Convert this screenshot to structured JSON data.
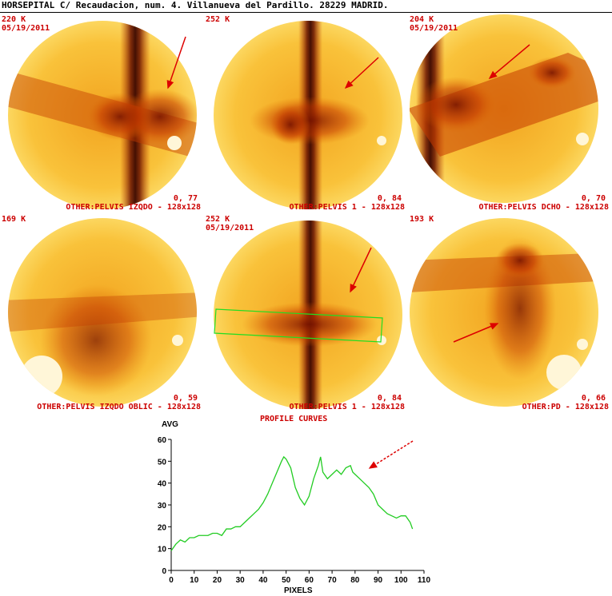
{
  "header": {
    "text": "HORSEPITAL C/ Recaudacion, num. 4. Villanueva del Pardillo. 28229 MADRID."
  },
  "panels": [
    {
      "count": "220 K",
      "date": "05/19/2011",
      "value": "0, 77",
      "view": "OTHER:PELVIS IZQDO - 128x128"
    },
    {
      "count": "252 K",
      "date": "",
      "value": "0, 84",
      "view": "OTHER:PELVIS 1 - 128x128"
    },
    {
      "count": "204 K",
      "date": "05/19/2011",
      "value": "0, 70",
      "view": "OTHER:PELVIS DCHO - 128x128"
    },
    {
      "count": "169 K",
      "date": "",
      "value": "0, 59",
      "view": "OTHER:PELVIS IZQDO OBLIC - 128x128"
    },
    {
      "count": "252 K",
      "date": "05/19/2011",
      "value": "0, 84",
      "view": "OTHER:PELVIS 1 - 128x128"
    },
    {
      "count": "193 K",
      "date": "",
      "value": "0, 66",
      "view": "OTHER:PD - 128x128"
    }
  ],
  "profile_caption": "PROFILE CURVES",
  "colors": {
    "label_red": "#cc0000",
    "curve_green": "#22cc22",
    "roi_green": "#22dd22",
    "arrow_red": "#dd0000",
    "hot_dark": "#3a0600",
    "hot_mid": "#c43a00",
    "hot_light": "#f7b020",
    "hot_pale": "#ffeea0"
  },
  "chart_data": {
    "type": "line",
    "ylabel": "AVG",
    "xlabel": "PIXELS",
    "xlim": [
      0,
      110
    ],
    "ylim": [
      0,
      60
    ],
    "xticks": [
      0,
      10,
      20,
      30,
      40,
      50,
      60,
      70,
      80,
      90,
      100,
      110
    ],
    "yticks": [
      0,
      10,
      20,
      30,
      40,
      50,
      60
    ],
    "grid": false,
    "series": [
      {
        "x": [
          0,
          2,
          4,
          6,
          8,
          10,
          12,
          14,
          16,
          18,
          20,
          22,
          24,
          26,
          28,
          30,
          32,
          34,
          36,
          38,
          40,
          42,
          44,
          46,
          48,
          49,
          50,
          52,
          54,
          56,
          58,
          60,
          62,
          64,
          65,
          66,
          68,
          70,
          72,
          74,
          76,
          78,
          79,
          80,
          82,
          84,
          86,
          88,
          90,
          92,
          94,
          96,
          98,
          100,
          102,
          104,
          105
        ],
        "y": [
          9,
          12,
          14,
          13,
          15,
          15,
          16,
          16,
          16,
          17,
          17,
          16,
          19,
          19,
          20,
          20,
          22,
          24,
          26,
          28,
          31,
          35,
          40,
          45,
          50,
          52,
          51,
          47,
          38,
          33,
          30,
          34,
          42,
          48,
          52,
          45,
          42,
          44,
          46,
          44,
          47,
          48,
          45,
          44,
          42,
          40,
          38,
          35,
          30,
          28,
          26,
          25,
          24,
          25,
          25,
          22,
          19
        ]
      }
    ]
  }
}
